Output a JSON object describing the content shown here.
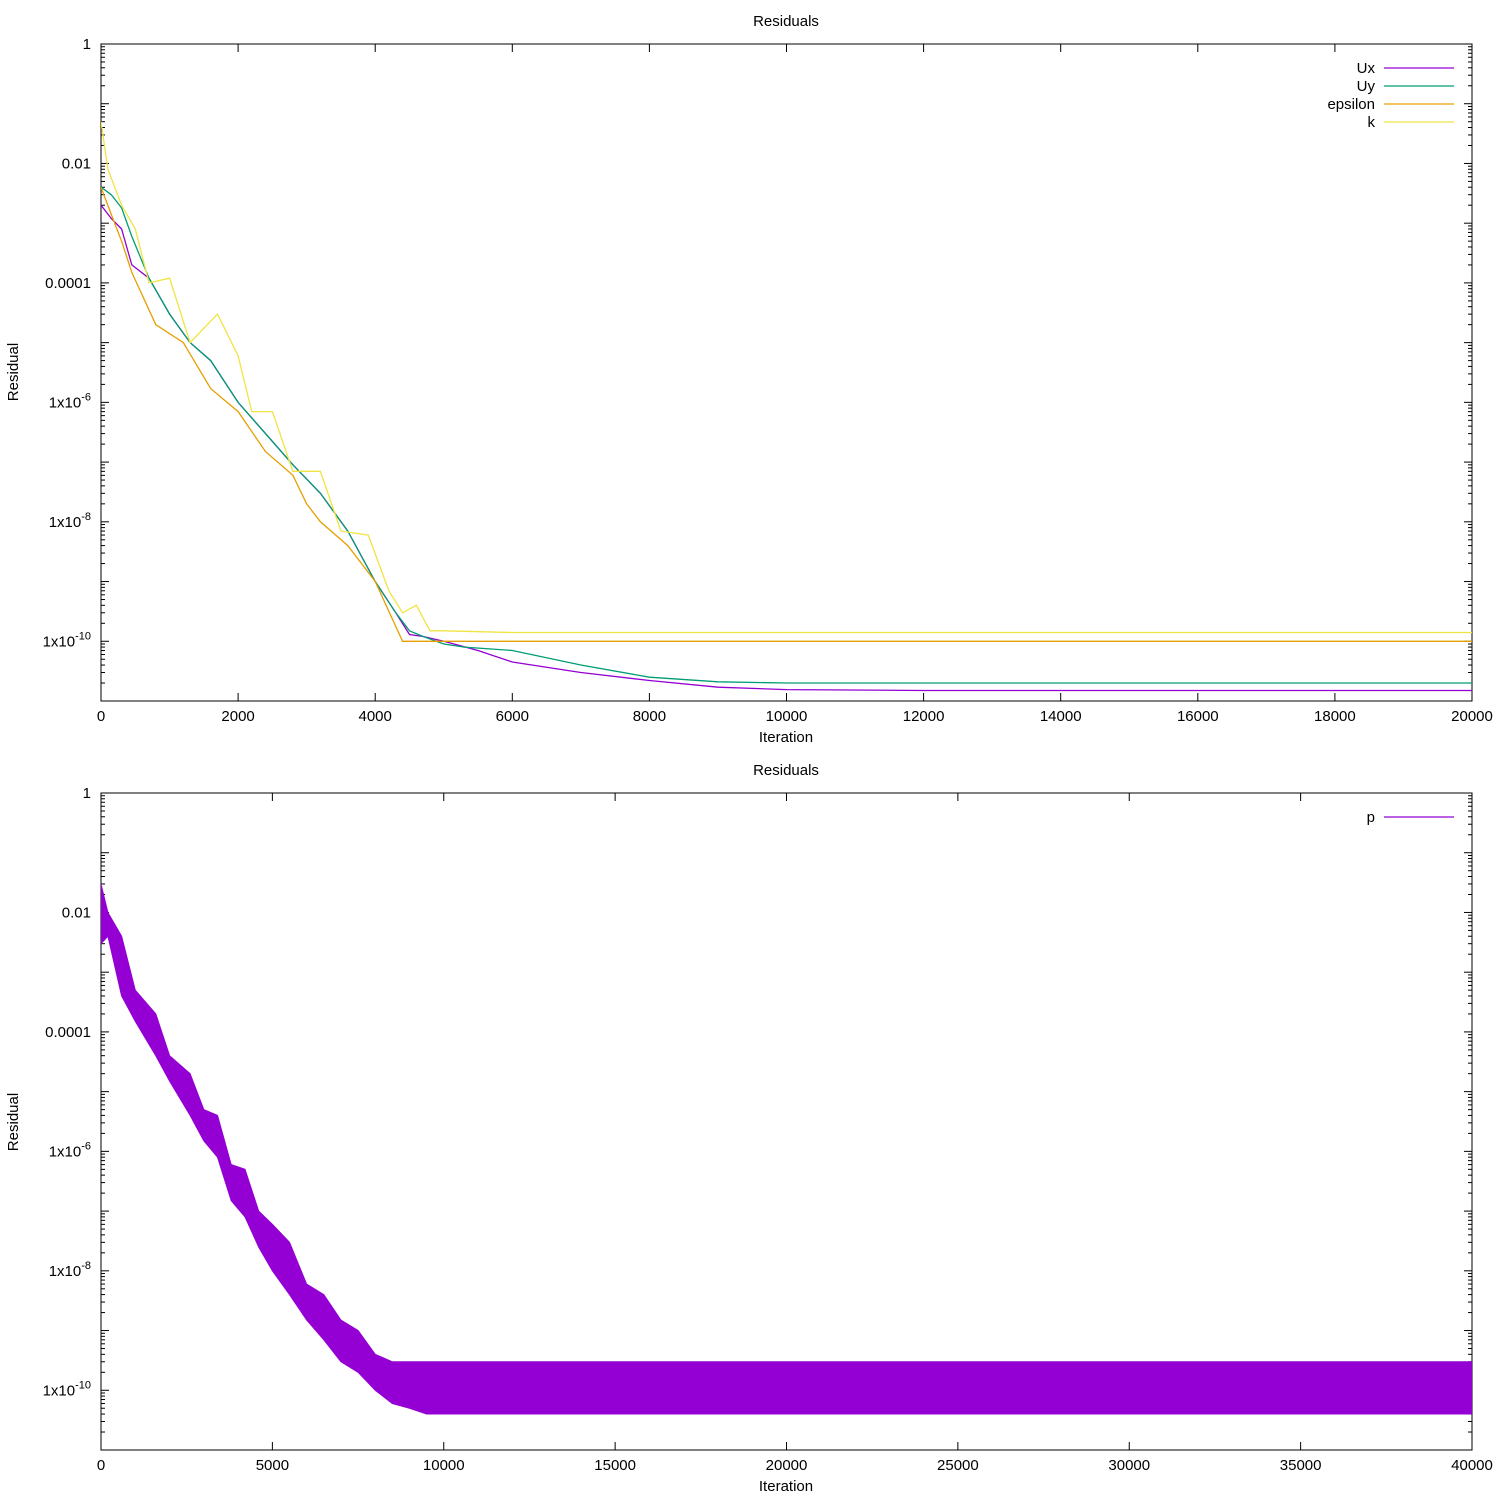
{
  "chart_data": [
    {
      "type": "line",
      "title": "Residuals",
      "xlabel": "Iteration",
      "ylabel": "Residual",
      "yscale": "log",
      "xlim": [
        0,
        20000
      ],
      "ylim": [
        1e-11,
        1
      ],
      "grid": false,
      "legend_position": "top-right",
      "x_ticks": [
        "0",
        "2000",
        "4000",
        "6000",
        "8000",
        "10000",
        "12000",
        "14000",
        "16000",
        "18000",
        "20000"
      ],
      "y_ticks": [
        {
          "value": 1,
          "label": "1"
        },
        {
          "value": 0.01,
          "label": "0.01"
        },
        {
          "value": 0.0001,
          "label": "0.0001"
        },
        {
          "value": 1e-06,
          "label": "1x10-6",
          "base": "1x10",
          "exp": "-6"
        },
        {
          "value": 1e-08,
          "label": "1x10-8",
          "base": "1x10",
          "exp": "-8"
        },
        {
          "value": 1e-10,
          "label": "1x10-10",
          "base": "1x10",
          "exp": "-10"
        }
      ],
      "series": [
        {
          "name": "Ux",
          "color": "#9400d3",
          "x": [
            0,
            150,
            300,
            450,
            700,
            1000,
            1300,
            1600,
            2000,
            2400,
            2800,
            3200,
            3600,
            4000,
            4300,
            4500,
            4700,
            5000,
            5500,
            6000,
            7000,
            8000,
            9000,
            10000,
            12000,
            15000,
            20000
          ],
          "y": [
            0.002,
            0.0012,
            0.0008,
            0.0002,
            0.00012,
            3e-05,
            1e-05,
            5e-06,
            1e-06,
            3e-07,
            9e-08,
            3e-08,
            7e-09,
            1e-09,
            3e-10,
            1.3e-10,
            1.2e-10,
            1e-10,
            7e-11,
            4.5e-11,
            3e-11,
            2.2e-11,
            1.7e-11,
            1.55e-11,
            1.5e-11,
            1.5e-11,
            1.5e-11
          ]
        },
        {
          "name": "Uy",
          "color": "#009e73",
          "x": [
            0,
            150,
            300,
            450,
            700,
            1000,
            1300,
            1600,
            2000,
            2400,
            2800,
            3200,
            3600,
            4000,
            4300,
            4500,
            4700,
            5000,
            5300,
            6000,
            7000,
            8000,
            9000,
            10000,
            12000,
            15000,
            20000
          ],
          "y": [
            0.004,
            0.003,
            0.0018,
            0.0006,
            0.00012,
            3e-05,
            1e-05,
            5e-06,
            1e-06,
            3e-07,
            9e-08,
            3e-08,
            7e-09,
            1e-09,
            3e-10,
            1.5e-10,
            1.2e-10,
            9e-11,
            8e-11,
            7e-11,
            4e-11,
            2.5e-11,
            2.1e-11,
            2e-11,
            2e-11,
            2e-11,
            2e-11
          ]
        },
        {
          "name": "epsilon",
          "color": "#e69f00",
          "x": [
            0,
            150,
            300,
            450,
            800,
            1200,
            1600,
            2000,
            2400,
            2800,
            3000,
            3200,
            3600,
            4000,
            4400,
            4600,
            5000,
            6000,
            8000,
            10000,
            15000,
            20000
          ],
          "y": [
            0.004,
            0.0014,
            0.0005,
            0.00015,
            2e-05,
            1e-05,
            1.7e-06,
            7e-07,
            1.5e-07,
            6e-08,
            2e-08,
            1e-08,
            4e-09,
            1e-09,
            1e-10,
            1e-10,
            1e-10,
            1e-10,
            1e-10,
            1e-10,
            1e-10,
            1e-10
          ]
        },
        {
          "name": "k",
          "color": "#f0e442",
          "x": [
            0,
            100,
            300,
            500,
            700,
            1000,
            1300,
            1700,
            2000,
            2200,
            2500,
            2800,
            3200,
            3500,
            3900,
            4200,
            4400,
            4600,
            4800,
            5000,
            6000,
            8000,
            10000,
            15000,
            20000
          ],
          "y": [
            0.05,
            0.008,
            0.002,
            0.0008,
            0.0001,
            0.00012,
            1e-05,
            3e-05,
            6e-06,
            7e-07,
            7e-07,
            7e-08,
            7e-08,
            7e-09,
            6e-09,
            7e-10,
            3e-10,
            4e-10,
            1.5e-10,
            1.5e-10,
            1.4e-10,
            1.4e-10,
            1.4e-10,
            1.4e-10,
            1.4e-10
          ]
        }
      ]
    },
    {
      "type": "line",
      "title": "Residuals",
      "xlabel": "Iteration",
      "ylabel": "Residual",
      "yscale": "log",
      "xlim": [
        0,
        40000
      ],
      "ylim": [
        1e-11,
        1
      ],
      "grid": false,
      "legend_position": "top-right",
      "x_ticks": [
        "0",
        "5000",
        "10000",
        "15000",
        "20000",
        "25000",
        "30000",
        "35000",
        "40000"
      ],
      "y_ticks": [
        {
          "value": 1,
          "label": "1"
        },
        {
          "value": 0.01,
          "label": "0.01"
        },
        {
          "value": 0.0001,
          "label": "0.0001"
        },
        {
          "value": 1e-06,
          "label": "1x10-6",
          "base": "1x10",
          "exp": "-6"
        },
        {
          "value": 1e-08,
          "label": "1x10-8",
          "base": "1x10",
          "exp": "-8"
        },
        {
          "value": 1e-10,
          "label": "1x10-10",
          "base": "1x10",
          "exp": "-10"
        }
      ],
      "series": [
        {
          "name": "p",
          "color": "#9400d3",
          "band": true,
          "x": [
            0,
            200,
            600,
            1000,
            1600,
            2000,
            2600,
            3000,
            3400,
            3800,
            4200,
            4600,
            5000,
            5500,
            6000,
            6500,
            7000,
            7500,
            8000,
            8500,
            9000,
            9500,
            10000,
            10500,
            11000,
            12000,
            15000,
            20000,
            25000,
            30000,
            35000,
            40000
          ],
          "y_upper": [
            0.03,
            0.01,
            0.004,
            0.0005,
            0.0002,
            4e-05,
            2e-05,
            5e-06,
            4e-06,
            6e-07,
            5e-07,
            1e-07,
            6e-08,
            3e-08,
            6e-09,
            4e-09,
            1.5e-09,
            1e-09,
            4e-10,
            3e-10,
            3e-10,
            3e-10,
            3e-10,
            3e-10,
            3e-10,
            3e-10,
            3e-10,
            3e-10,
            3e-10,
            3e-10,
            3e-10,
            3e-10
          ],
          "y_lower": [
            0.003,
            0.004,
            0.0004,
            0.00015,
            4e-05,
            1.5e-05,
            4e-06,
            1.5e-06,
            8e-07,
            1.5e-07,
            8e-08,
            2.5e-08,
            1e-08,
            4e-09,
            1.5e-09,
            7e-10,
            3e-10,
            2e-10,
            1e-10,
            6e-11,
            5e-11,
            4e-11,
            4e-11,
            4e-11,
            4e-11,
            4e-11,
            4e-11,
            4e-11,
            4e-11,
            4e-11,
            4e-11,
            4e-11
          ]
        }
      ]
    }
  ]
}
